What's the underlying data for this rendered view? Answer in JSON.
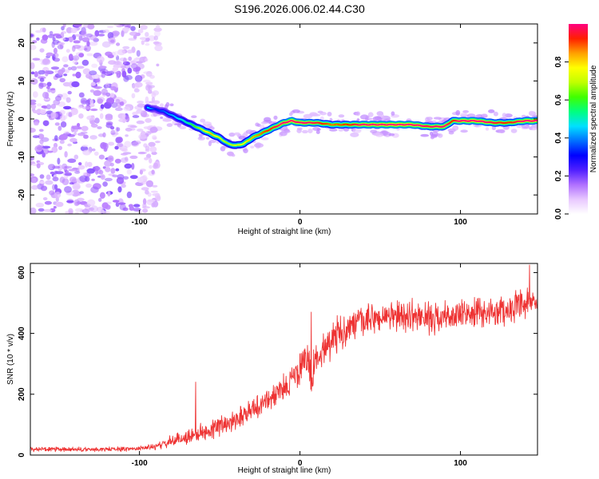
{
  "title": "S196.2026.006.02.44.C30",
  "chart_data": [
    {
      "type": "heatmap",
      "xlabel": "Height of straight line (km)",
      "ylabel": "Frequency (Hz)",
      "xlim": [
        -168,
        148
      ],
      "ylim": [
        -25,
        25
      ],
      "x_ticks": [
        -100,
        0,
        100
      ],
      "x_tick_labels": [
        "-100",
        "0",
        "100"
      ],
      "y_ticks": [
        -20,
        -10,
        0,
        10,
        20
      ],
      "y_tick_labels": [
        "-20",
        "-10",
        "0",
        "10",
        "20"
      ],
      "colorbar": {
        "label": "Normalized spectral amplitude",
        "range": [
          0,
          1
        ],
        "ticks": [
          0.0,
          0.2,
          0.4,
          0.6,
          0.8
        ],
        "tick_labels": [
          "0.0",
          "0.2",
          "0.4",
          "0.6",
          "0.8"
        ],
        "colors": [
          "#ffffff",
          "#e8c8ff",
          "#b070ff",
          "#5020ff",
          "#0000ff",
          "#0070ff",
          "#00e0ff",
          "#00ff80",
          "#40ff00",
          "#c0ff00",
          "#ffff00",
          "#ffa000",
          "#ff2000",
          "#ff0080"
        ]
      },
      "ridge": {
        "x": [
          -95,
          -90,
          -85,
          -80,
          -75,
          -70,
          -65,
          -60,
          -55,
          -50,
          -45,
          -40,
          -35,
          -30,
          -25,
          -20,
          -15,
          -10,
          -5,
          0,
          10,
          20,
          30,
          40,
          50,
          60,
          70,
          80,
          85,
          90,
          95,
          100,
          110,
          120,
          130,
          140,
          148
        ],
        "freq": [
          3,
          2.5,
          2,
          1,
          0,
          -1,
          -2,
          -3,
          -4,
          -5,
          -6.5,
          -7,
          -6.5,
          -5,
          -4,
          -3,
          -2,
          -1,
          -0.5,
          -1,
          -1,
          -1.5,
          -1.5,
          -1.5,
          -1.5,
          -1.5,
          -1.5,
          -2,
          -2,
          -2,
          -0.5,
          -0.5,
          -0.5,
          -1,
          -1,
          -0.5,
          -0.5
        ],
        "amplitude": [
          0.35,
          0.2,
          0.25,
          0.3,
          0.35,
          0.4,
          0.5,
          0.6,
          0.7,
          0.6,
          0.55,
          0.6,
          0.65,
          0.7,
          0.75,
          0.8,
          0.85,
          0.9,
          0.95,
          0.9,
          0.85,
          0.75,
          0.8,
          0.9,
          0.95,
          0.98,
          0.95,
          0.85,
          0.9,
          0.9,
          0.8,
          0.9,
          0.95,
          0.85,
          0.8,
          0.9,
          0.95
        ]
      },
      "noise_region_x": [
        -168,
        -88
      ],
      "noise_amplitude_range": [
        0.05,
        0.2
      ]
    },
    {
      "type": "line",
      "xlabel": "Height of straight line (km)",
      "ylabel": "SNR (10 * v/v)",
      "xlim": [
        -168,
        148
      ],
      "ylim": [
        0,
        630
      ],
      "x_ticks": [
        -100,
        0,
        100
      ],
      "x_tick_labels": [
        "-100",
        "0",
        "100"
      ],
      "y_ticks": [
        0,
        200,
        400,
        600
      ],
      "y_tick_labels": [
        "0",
        "200",
        "400",
        "600"
      ],
      "color": "#ee3333",
      "series": [
        {
          "name": "SNR",
          "x": [
            -168,
            -150,
            -130,
            -110,
            -100,
            -90,
            -85,
            -80,
            -70,
            -60,
            -50,
            -40,
            -30,
            -20,
            -10,
            -5,
            0,
            5,
            8,
            10,
            15,
            20,
            25,
            30,
            40,
            50,
            60,
            70,
            80,
            90,
            100,
            110,
            120,
            130,
            140,
            148
          ],
          "y": [
            20,
            18,
            18,
            20,
            22,
            28,
            35,
            45,
            60,
            75,
            95,
            120,
            150,
            180,
            220,
            250,
            280,
            320,
            250,
            310,
            360,
            380,
            400,
            420,
            440,
            450,
            455,
            460,
            450,
            455,
            460,
            465,
            470,
            480,
            490,
            500
          ],
          "noise_amplitude": [
            8,
            8,
            8,
            8,
            8,
            10,
            15,
            20,
            25,
            30,
            35,
            35,
            40,
            40,
            45,
            50,
            60,
            70,
            80,
            60,
            60,
            60,
            60,
            55,
            50,
            50,
            50,
            50,
            50,
            50,
            50,
            50,
            50,
            50,
            50,
            50
          ]
        }
      ],
      "spikes": [
        {
          "x": -65,
          "y": 240
        },
        {
          "x": 7,
          "y": 470
        },
        {
          "x": 143,
          "y": 625
        }
      ]
    }
  ]
}
